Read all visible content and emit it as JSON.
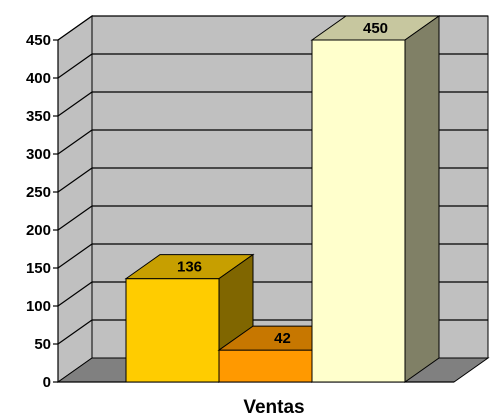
{
  "chart_data": {
    "type": "bar",
    "title": "",
    "xlabel": "Ventas",
    "ylabel": "",
    "ylim": [
      0,
      450
    ],
    "ytick_step": 50,
    "grid": true,
    "legend": "none",
    "categories": [
      "",
      "",
      ""
    ],
    "values": [
      136,
      42,
      450
    ],
    "data_labels": [
      "136",
      "42",
      "450"
    ],
    "colors": [
      "#ffcc00",
      "#ff9900",
      "#ffffcc"
    ],
    "wall_color": "#c0c0c0",
    "floor_color": "#808080"
  }
}
